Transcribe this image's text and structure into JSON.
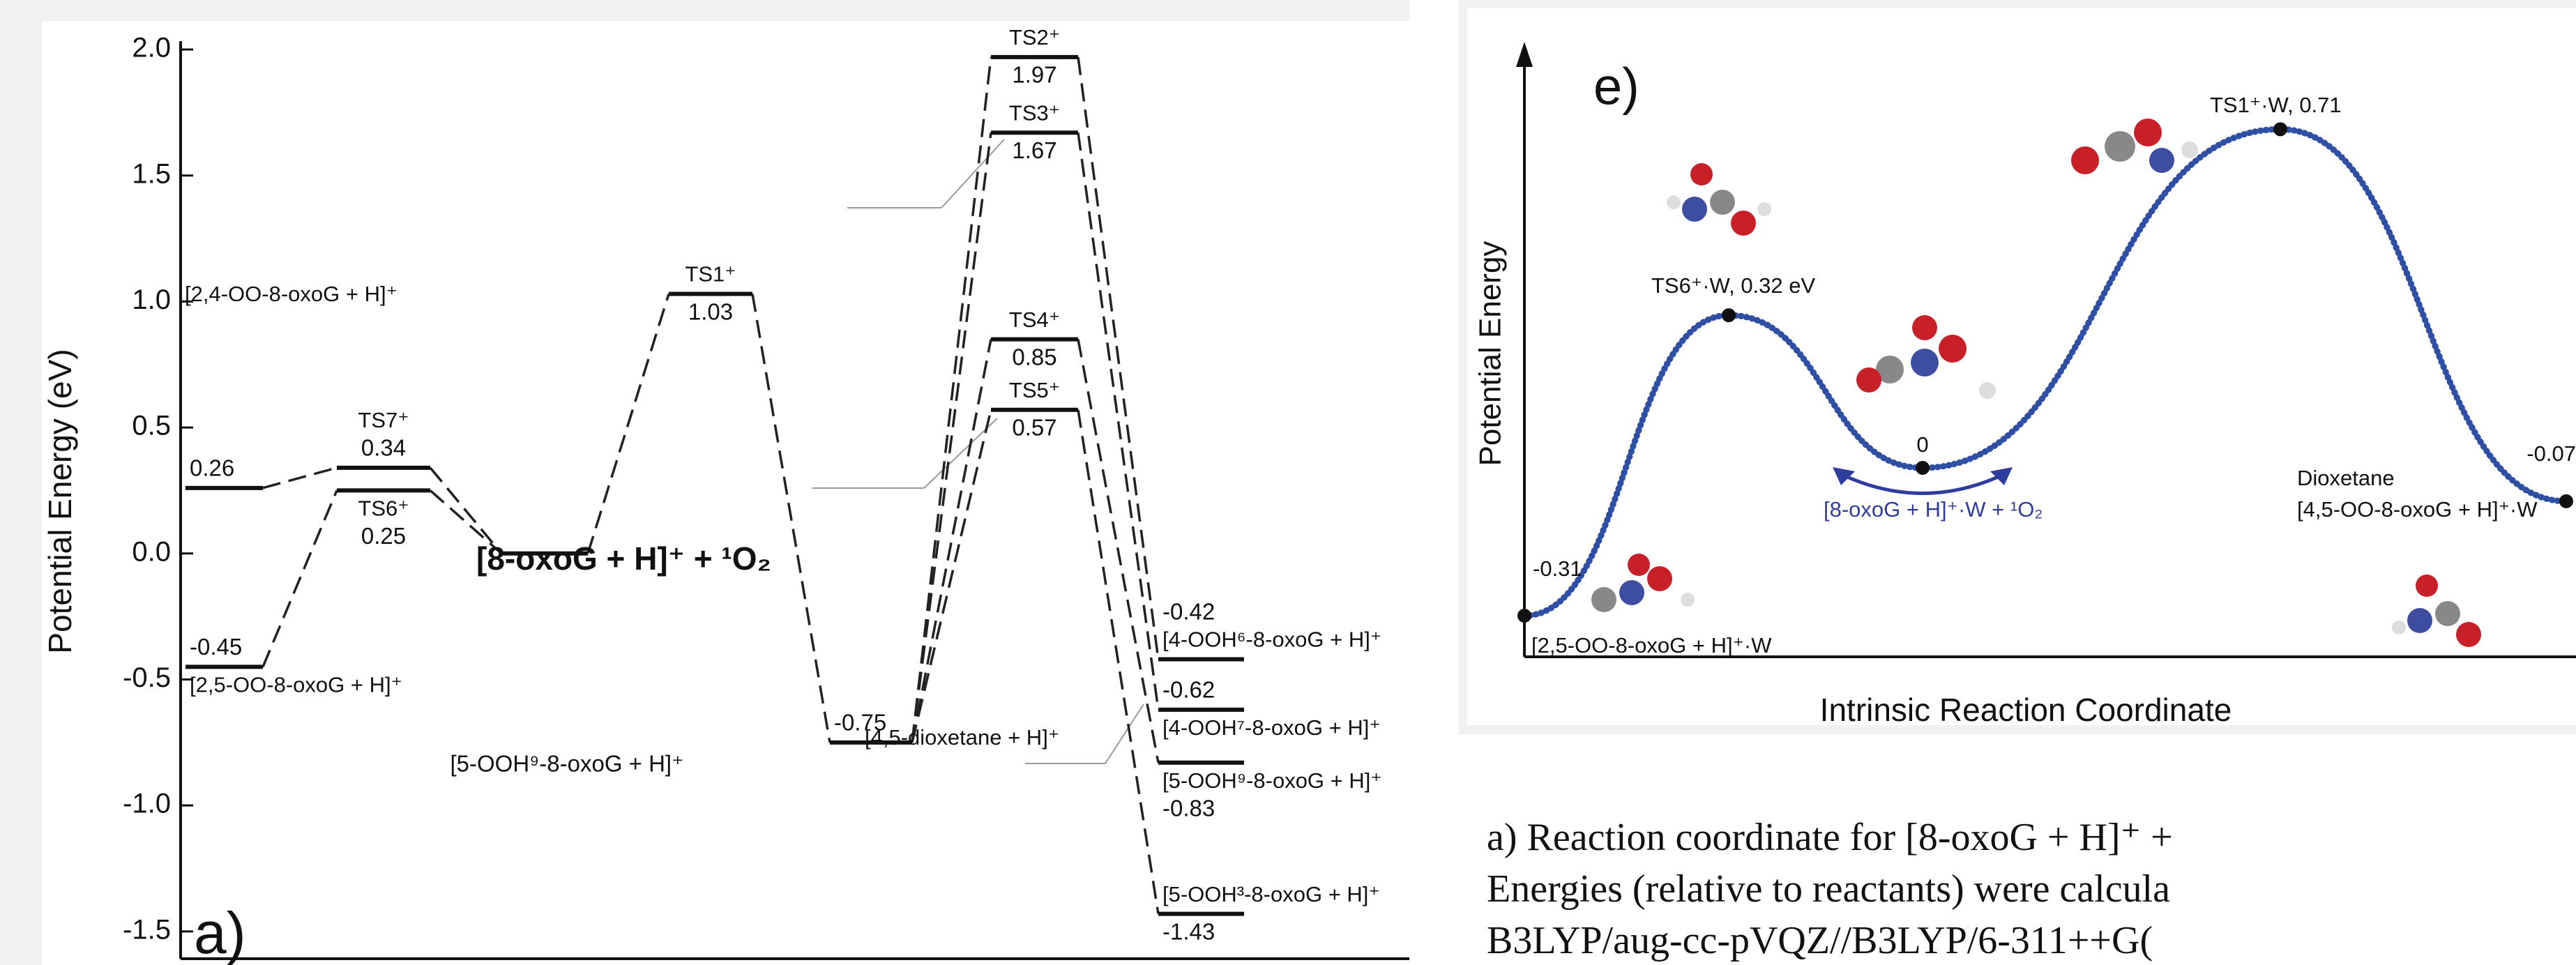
{
  "chart_data": [
    {
      "type": "energy",
      "ylabel": "Potential Energy (eV)",
      "panel_label": "a)",
      "ylim": [
        -1.6,
        2.0
      ],
      "yticks": [
        {
          "value": 2.0,
          "label": "2.0"
        },
        {
          "value": 1.5,
          "label": "1.5"
        },
        {
          "value": 1.0,
          "label": "1.0"
        },
        {
          "value": 0.5,
          "label": "0.5"
        },
        {
          "value": 0.0,
          "label": "0.0"
        },
        {
          "value": -0.5,
          "label": "-0.5"
        },
        {
          "value": -1.0,
          "label": "-1.0"
        },
        {
          "value": -1.5,
          "label": "-1.5"
        }
      ],
      "levels": [
        {
          "name": "[2,4-OO-8-oxoG + H]⁺",
          "value": 0.26
        },
        {
          "name": "[2,5-OO-8-oxoG + H]⁺",
          "value": -0.45
        },
        {
          "name": "TS7⁺",
          "value": 0.34
        },
        {
          "name": "TS6⁺",
          "value": 0.25
        },
        {
          "name": "[8-oxoG + H]⁺ + ¹O₂",
          "value": 0
        },
        {
          "name": "TS1⁺",
          "value": 1.03
        },
        {
          "name": "[4,5-dioxetane + H]⁺",
          "value": -0.75
        },
        {
          "name": "TS2⁺",
          "value": 1.97
        },
        {
          "name": "TS3⁺",
          "value": 1.67
        },
        {
          "name": "TS4⁺",
          "value": 0.85
        },
        {
          "name": "TS5⁺",
          "value": 0.57
        },
        {
          "name": "[4-OOH⁶-8-oxoG + H]⁺",
          "value": -0.42
        },
        {
          "name": "[4-OOH⁷-8-oxoG + H]⁺",
          "value": -0.62
        },
        {
          "name": "[5-OOH⁹-8-oxoG + H]⁺",
          "value": -0.83
        },
        {
          "name": "[5-OOH³-8-oxoG + H]⁺",
          "value": -1.43
        }
      ],
      "annotations": [
        "[5-OOH⁹-8-oxoG + H]⁺"
      ]
    },
    {
      "type": "line",
      "panel_label": "e)",
      "ylabel": "Potential Energy",
      "xlabel": "Intrinsic Reaction Coordinate",
      "color": "#2e4fa3",
      "values": [
        -0.31,
        0.32,
        0,
        0.71,
        -0.07
      ],
      "value_labels": [
        "-0.31",
        "TS6⁺·W, 0.32 eV",
        "0",
        "TS1⁺·W, 0.71",
        "-0.07"
      ],
      "annotations": [
        "[2,5-OO-8-oxoG + H]⁺·W",
        "[8-oxoG + H]⁺·W + ¹O₂",
        "Dioxetane",
        "[4,5-OO-8-oxoG + H]⁺·W"
      ]
    }
  ],
  "caption": {
    "lines": [
      "a) Reaction coordinate for [8-oxoG + H]⁺ +",
      "Energies (relative to reactants) were calcula",
      "B3LYP/aug-cc-pVQZ//B3LYP/6-311++G("
    ]
  }
}
